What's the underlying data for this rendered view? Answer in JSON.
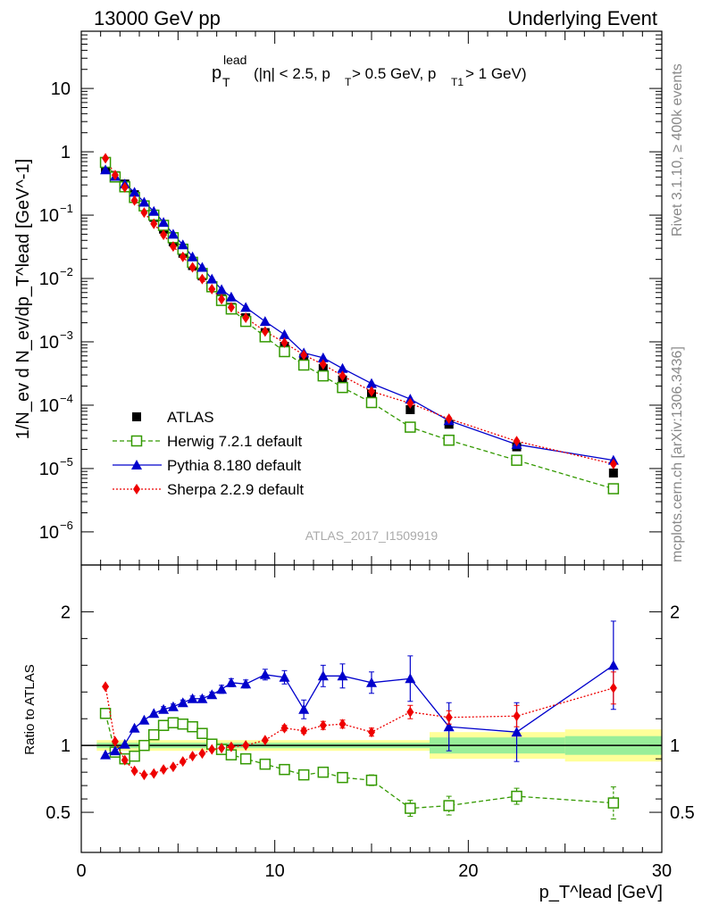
{
  "header": {
    "left": "13000 GeV pp",
    "right": "Underlying Event"
  },
  "title": {
    "main": "p",
    "sup": "lead",
    "sub": "T",
    "rest": "(|η| < 2.5, p",
    "rest_sub": "T",
    "rest2": " > 0.5 GeV, p",
    "rest2_sub": "T1",
    "rest3": " > 1 GeV)"
  },
  "side": {
    "rivet": "Rivet 3.1.10, ≥ 400k events",
    "mcplots": "mcplots.cern.ch [arXiv:1306.3436]"
  },
  "analysis_label": "ATLAS_2017_I1509919",
  "ylabel_main": "1/N_ev d N_ev/dp_T^lead [GeV^-1]",
  "ylabel_ratio": "Ratio to ATLAS",
  "xlabel": "p_T^lead [GeV]",
  "legend": [
    {
      "key": "atlas",
      "label": "ATLAS"
    },
    {
      "key": "herwig",
      "label": "Herwig 7.2.1 default"
    },
    {
      "key": "pythia",
      "label": "Pythia 8.180 default"
    },
    {
      "key": "sherpa",
      "label": "Sherpa 2.2.9 default"
    }
  ],
  "chart_data": {
    "type": "scatter",
    "xlim": [
      0,
      30
    ],
    "ylim_main": [
      3e-07,
      80
    ],
    "ylim_ratio": [
      0.2,
      2.35
    ],
    "y_scale_main": "log",
    "x_ticks": [
      "0",
      "10",
      "20",
      "30"
    ],
    "y_ticks_main": [
      "10^-6",
      "10^-5",
      "10^-4",
      "10^-3",
      "10^-2",
      "10^-1",
      "1",
      "10"
    ],
    "y_ticks_ratio": [
      "0.5",
      "1",
      "2"
    ],
    "colors": {
      "atlas": "#000000",
      "herwig": "#339900",
      "pythia": "#0000cc",
      "sherpa": "#ee0000",
      "band_inner": "#99ee99",
      "band_outer": "#ffff99"
    },
    "x": [
      1.25,
      1.75,
      2.25,
      2.75,
      3.25,
      3.75,
      4.25,
      4.75,
      5.25,
      5.75,
      6.25,
      6.75,
      7.25,
      7.75,
      8.5,
      9.5,
      10.5,
      11.5,
      12.5,
      13.5,
      15.0,
      17.0,
      19.0,
      22.5,
      27.5
    ],
    "series": [
      {
        "name": "ATLAS",
        "key": "atlas",
        "values": [
          0.55,
          0.42,
          0.31,
          0.21,
          0.14,
          0.092,
          0.06,
          0.038,
          0.025,
          0.016,
          0.011,
          0.0073,
          0.0048,
          0.0035,
          0.0024,
          0.0014,
          0.00085,
          0.00055,
          0.00038,
          0.00025,
          0.00015,
          8.5e-05,
          5e-05,
          2.2e-05,
          8.5e-06
        ]
      },
      {
        "name": "Herwig 7.2.1 default",
        "key": "herwig",
        "values": [
          0.68,
          0.4,
          0.28,
          0.19,
          0.14,
          0.1,
          0.069,
          0.044,
          0.029,
          0.018,
          0.012,
          0.0074,
          0.0045,
          0.0033,
          0.0021,
          0.0012,
          0.0007,
          0.00043,
          0.00029,
          0.00019,
          0.00011,
          4.5e-05,
          2.8e-05,
          1.35e-05,
          4.8e-06
        ]
      },
      {
        "name": "Pythia 8.180 default",
        "key": "pythia",
        "values": [
          0.52,
          0.41,
          0.31,
          0.23,
          0.16,
          0.115,
          0.077,
          0.05,
          0.034,
          0.022,
          0.015,
          0.0098,
          0.0067,
          0.0051,
          0.0035,
          0.0021,
          0.0013,
          0.00067,
          0.00056,
          0.00038,
          0.00022,
          0.000125,
          5.7e-05,
          2.4e-05,
          1.35e-05
        ]
      },
      {
        "name": "Sherpa 2.2.9 default",
        "key": "sherpa",
        "values": [
          0.79,
          0.43,
          0.275,
          0.17,
          0.11,
          0.073,
          0.049,
          0.032,
          0.022,
          0.015,
          0.0098,
          0.0068,
          0.0047,
          0.0035,
          0.0024,
          0.00146,
          0.00097,
          0.00062,
          0.00044,
          0.00029,
          0.000165,
          0.000107,
          6.1e-05,
          2.7e-05,
          1.18e-05
        ]
      }
    ],
    "ratio_series": [
      {
        "key": "herwig",
        "values": [
          1.24,
          0.95,
          0.9,
          0.92,
          1.0,
          1.08,
          1.15,
          1.17,
          1.16,
          1.14,
          1.09,
          1.01,
          0.97,
          0.93,
          0.9,
          0.86,
          0.82,
          0.78,
          0.8,
          0.76,
          0.74,
          0.53,
          0.55,
          0.62,
          0.57
        ],
        "errors": [
          0.01,
          0.01,
          0.01,
          0.01,
          0.01,
          0.01,
          0.01,
          0.01,
          0.01,
          0.01,
          0.01,
          0.01,
          0.01,
          0.01,
          0.01,
          0.01,
          0.02,
          0.025,
          0.03,
          0.03,
          0.04,
          0.06,
          0.07,
          0.06,
          0.12
        ]
      },
      {
        "key": "pythia",
        "values": [
          0.93,
          0.96,
          1.01,
          1.13,
          1.19,
          1.24,
          1.27,
          1.29,
          1.32,
          1.35,
          1.35,
          1.38,
          1.42,
          1.47,
          1.46,
          1.53,
          1.51,
          1.27,
          1.52,
          1.52,
          1.47,
          1.5,
          1.14,
          1.1,
          1.6
        ],
        "errors": [
          0.01,
          0.01,
          0.01,
          0.01,
          0.01,
          0.01,
          0.02,
          0.02,
          0.02,
          0.02,
          0.02,
          0.02,
          0.03,
          0.03,
          0.03,
          0.04,
          0.05,
          0.07,
          0.08,
          0.09,
          0.08,
          0.17,
          0.18,
          0.22,
          0.33
        ]
      },
      {
        "key": "sherpa",
        "values": [
          1.44,
          1.03,
          0.89,
          0.81,
          0.78,
          0.79,
          0.82,
          0.84,
          0.88,
          0.92,
          0.94,
          0.97,
          0.98,
          0.99,
          1.0,
          1.04,
          1.13,
          1.11,
          1.15,
          1.16,
          1.1,
          1.25,
          1.21,
          1.22,
          1.43
        ],
        "errors": [
          0.01,
          0.01,
          0.01,
          0.01,
          0.01,
          0.01,
          0.01,
          0.01,
          0.01,
          0.01,
          0.01,
          0.01,
          0.01,
          0.01,
          0.01,
          0.01,
          0.02,
          0.02,
          0.03,
          0.03,
          0.03,
          0.05,
          0.05,
          0.08,
          0.12
        ]
      }
    ],
    "atlas_band": [
      {
        "x0": 0.8,
        "x1": 18.0,
        "inner": 0.02,
        "outer": 0.04
      },
      {
        "x0": 18.0,
        "x1": 25.0,
        "inner": 0.06,
        "outer": 0.1
      },
      {
        "x0": 25.0,
        "x1": 30.0,
        "inner": 0.07,
        "outer": 0.12
      }
    ]
  }
}
